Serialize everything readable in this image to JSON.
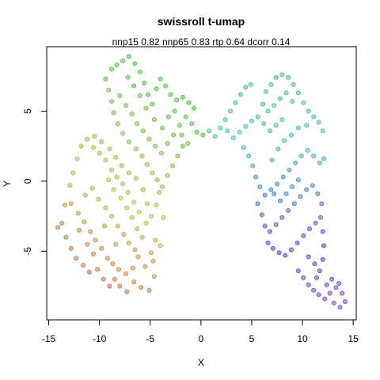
{
  "chart_data": {
    "type": "scatter",
    "title": "swissroll t-umap",
    "subtitle": "nnp15 0.82 nnp65 0.83 rtp 0.64 dcorr 0.14",
    "xlabel": "X",
    "ylabel": "Y",
    "xlim": [
      -15.2,
      15.3
    ],
    "ylim": [
      -9.9,
      9.6
    ],
    "x_ticks": [
      -15,
      -10,
      -5,
      0,
      5,
      10,
      15
    ],
    "y_ticks": [
      -5,
      0,
      5
    ],
    "grid": false,
    "legend": "none",
    "color_encoding": "rainbow hue along manifold (red to magenta)",
    "point_colors": [
      "#c0504a",
      "#c8a049",
      "#9ec544",
      "#4cc050",
      "#3cc0bf",
      "#3f7fd0",
      "#6648c8",
      "#c040c0"
    ],
    "points": [
      [
        -14.1,
        -3.3
      ],
      [
        -13.7,
        -3.0
      ],
      [
        -13.3,
        -4.0
      ],
      [
        -12.8,
        -4.8
      ],
      [
        -12.3,
        -5.5
      ],
      [
        -11.6,
        -6.0
      ],
      [
        -11.0,
        -6.5
      ],
      [
        -10.2,
        -6.3
      ],
      [
        -9.6,
        -7.0
      ],
      [
        -9.0,
        -7.5
      ],
      [
        -8.5,
        -7.0
      ],
      [
        -8.0,
        -7.5
      ],
      [
        -7.3,
        -7.9
      ],
      [
        -6.6,
        -7.2
      ],
      [
        -5.9,
        -7.6
      ],
      [
        -5.1,
        -7.8
      ],
      [
        -4.6,
        -6.8
      ],
      [
        -4.7,
        -5.7
      ],
      [
        -13.4,
        -1.7
      ],
      [
        -12.8,
        -1.6
      ],
      [
        -12.1,
        -2.3
      ],
      [
        -11.5,
        -2.9
      ],
      [
        -10.9,
        -3.6
      ],
      [
        -10.4,
        -4.2
      ],
      [
        -9.8,
        -4.8
      ],
      [
        -9.2,
        -5.5
      ],
      [
        -8.7,
        -5.9
      ],
      [
        -8.1,
        -6.3
      ],
      [
        -7.4,
        -6.6
      ],
      [
        -6.7,
        -6.2
      ],
      [
        -6.2,
        -5.4
      ],
      [
        -5.5,
        -6.1
      ],
      [
        -4.9,
        -5.1
      ],
      [
        -4.5,
        -4.2
      ],
      [
        -4.0,
        -4.6
      ],
      [
        -12.9,
        -0.3
      ],
      [
        -12.6,
        0.6
      ],
      [
        -12.2,
        1.6
      ],
      [
        -11.8,
        2.5
      ],
      [
        -11.2,
        3.0
      ],
      [
        -10.6,
        2.4
      ],
      [
        -10.0,
        2.0
      ],
      [
        -9.4,
        1.5
      ],
      [
        -8.8,
        0.8
      ],
      [
        -8.3,
        0.3
      ],
      [
        -7.7,
        -0.2
      ],
      [
        -7.2,
        -0.8
      ],
      [
        -6.6,
        -1.5
      ],
      [
        -6.1,
        -2.2
      ],
      [
        -5.4,
        -3.0
      ],
      [
        -4.9,
        -2.5
      ],
      [
        -4.4,
        -1.7
      ],
      [
        -4.1,
        -0.8
      ],
      [
        -3.7,
        -2.6
      ],
      [
        -11.4,
        -1.0
      ],
      [
        -10.7,
        -0.5
      ],
      [
        -10.1,
        -1.3
      ],
      [
        -9.4,
        -1.9
      ],
      [
        -8.8,
        -2.5
      ],
      [
        -8.2,
        -3.2
      ],
      [
        -7.6,
        -3.8
      ],
      [
        -7.1,
        -4.4
      ],
      [
        -6.5,
        -4.9
      ],
      [
        -12.0,
        -3.5
      ],
      [
        -11.2,
        -4.5
      ],
      [
        -10.6,
        -5.2
      ],
      [
        -9.5,
        -3.2
      ],
      [
        -8.4,
        -4.5
      ],
      [
        -9.1,
        0.1
      ],
      [
        -8.6,
        -0.6
      ],
      [
        -7.9,
        -1.2
      ],
      [
        -7.3,
        -1.9
      ],
      [
        -6.8,
        -2.6
      ],
      [
        -6.3,
        -3.4
      ],
      [
        -5.8,
        -4.0
      ],
      [
        -5.3,
        -1.6
      ],
      [
        -5.7,
        -0.6
      ],
      [
        -6.4,
        0.2
      ],
      [
        -7.1,
        0.6
      ],
      [
        -7.8,
        1.1
      ],
      [
        -8.4,
        1.7
      ],
      [
        -9.0,
        2.3
      ],
      [
        -9.8,
        2.8
      ],
      [
        -10.5,
        3.2
      ],
      [
        -8.8,
        8.0
      ],
      [
        -8.3,
        8.3
      ],
      [
        -7.7,
        8.6
      ],
      [
        -7.1,
        8.9
      ],
      [
        -6.5,
        8.4
      ],
      [
        -6.0,
        7.8
      ],
      [
        -5.6,
        7.0
      ],
      [
        -5.2,
        6.2
      ],
      [
        -4.8,
        5.5
      ],
      [
        -4.4,
        6.6
      ],
      [
        -4.0,
        7.3
      ],
      [
        -3.5,
        6.8
      ],
      [
        -3.0,
        6.2
      ],
      [
        -2.4,
        5.8
      ],
      [
        -1.8,
        6.0
      ],
      [
        -1.2,
        5.6
      ],
      [
        -0.7,
        5.2
      ],
      [
        -9.4,
        7.3
      ],
      [
        -9.1,
        6.5
      ],
      [
        -8.8,
        5.7
      ],
      [
        -8.6,
        4.9
      ],
      [
        -8.2,
        4.1
      ],
      [
        -7.7,
        3.4
      ],
      [
        -7.1,
        2.8
      ],
      [
        -6.4,
        2.3
      ],
      [
        -5.8,
        1.8
      ],
      [
        -5.3,
        1.2
      ],
      [
        -4.8,
        0.6
      ],
      [
        -4.3,
        0.1
      ],
      [
        -3.8,
        -0.4
      ],
      [
        -3.3,
        0.4
      ],
      [
        -2.8,
        1.1
      ],
      [
        -2.3,
        1.8
      ],
      [
        -1.8,
        2.5
      ],
      [
        -8.0,
        6.1
      ],
      [
        -7.4,
        5.4
      ],
      [
        -6.8,
        4.8
      ],
      [
        -6.3,
        4.1
      ],
      [
        -5.7,
        3.6
      ],
      [
        -5.1,
        3.0
      ],
      [
        -4.5,
        2.5
      ],
      [
        -3.9,
        2.0
      ],
      [
        -3.3,
        2.7
      ],
      [
        -2.7,
        3.3
      ],
      [
        -2.1,
        4.0
      ],
      [
        -1.5,
        4.6
      ],
      [
        -0.9,
        4.1
      ],
      [
        -0.4,
        3.5
      ],
      [
        -7.2,
        7.4
      ],
      [
        -6.6,
        6.8
      ],
      [
        -6.0,
        6.1
      ],
      [
        -5.4,
        5.2
      ],
      [
        -4.6,
        4.4
      ],
      [
        -3.8,
        3.8
      ],
      [
        -3.2,
        4.6
      ],
      [
        -2.6,
        5.0
      ],
      [
        -1.9,
        3.3
      ],
      [
        -1.3,
        2.7
      ],
      [
        0.2,
        3.3
      ],
      [
        0.8,
        3.6
      ],
      [
        1.4,
        3.2
      ],
      [
        1.9,
        3.8
      ],
      [
        2.4,
        4.4
      ],
      [
        2.9,
        5.0
      ],
      [
        3.4,
        5.6
      ],
      [
        3.9,
        6.2
      ],
      [
        4.4,
        6.7
      ],
      [
        4.9,
        6.9
      ],
      [
        2.6,
        3.6
      ],
      [
        3.2,
        3.1
      ],
      [
        3.8,
        3.5
      ],
      [
        4.4,
        3.9
      ],
      [
        5.0,
        4.3
      ],
      [
        5.6,
        4.6
      ],
      [
        6.2,
        4.1
      ],
      [
        6.8,
        3.6
      ],
      [
        7.4,
        4.0
      ],
      [
        8.0,
        4.4
      ],
      [
        6.4,
        6.4
      ],
      [
        6.9,
        6.9
      ],
      [
        7.4,
        7.4
      ],
      [
        8.0,
        7.6
      ],
      [
        8.6,
        7.4
      ],
      [
        9.1,
        6.9
      ],
      [
        9.6,
        6.3
      ],
      [
        10.1,
        5.6
      ],
      [
        10.6,
        5.0
      ],
      [
        11.1,
        4.6
      ],
      [
        11.6,
        4.2
      ],
      [
        12.0,
        3.6
      ],
      [
        6.1,
        5.5
      ],
      [
        6.6,
        5.0
      ],
      [
        7.2,
        5.4
      ],
      [
        7.8,
        5.9
      ],
      [
        8.4,
        6.3
      ],
      [
        9.0,
        5.7
      ],
      [
        4.2,
        2.4
      ],
      [
        4.7,
        1.8
      ],
      [
        5.1,
        1.1
      ],
      [
        5.4,
        0.3
      ],
      [
        5.8,
        -0.4
      ],
      [
        6.3,
        -1.0
      ],
      [
        6.9,
        -0.6
      ],
      [
        7.5,
        -0.2
      ],
      [
        8.1,
        0.3
      ],
      [
        8.7,
        0.8
      ],
      [
        9.3,
        1.3
      ],
      [
        9.9,
        1.8
      ],
      [
        10.5,
        2.2
      ],
      [
        11.1,
        1.8
      ],
      [
        11.7,
        1.3
      ],
      [
        12.1,
        1.6
      ],
      [
        7.0,
        1.5
      ],
      [
        7.6,
        2.3
      ],
      [
        8.2,
        2.9
      ],
      [
        8.9,
        3.3
      ],
      [
        9.6,
        3.8
      ],
      [
        10.4,
        4.0
      ],
      [
        5.6,
        -1.6
      ],
      [
        6.0,
        -2.4
      ],
      [
        6.3,
        -3.2
      ],
      [
        6.8,
        -3.6
      ],
      [
        7.4,
        -3.1
      ],
      [
        8.0,
        -2.6
      ],
      [
        8.6,
        -2.1
      ],
      [
        9.2,
        -1.6
      ],
      [
        9.8,
        -1.1
      ],
      [
        10.4,
        -0.6
      ],
      [
        11.0,
        -0.3
      ],
      [
        11.5,
        -0.9
      ],
      [
        11.9,
        -1.6
      ],
      [
        7.2,
        -0.9
      ],
      [
        7.8,
        -1.4
      ],
      [
        8.4,
        -0.9
      ],
      [
        9.0,
        -0.4
      ],
      [
        9.6,
        0.1
      ],
      [
        6.6,
        -4.4
      ],
      [
        7.1,
        -4.8
      ],
      [
        7.7,
        -5.1
      ],
      [
        8.3,
        -5.3
      ],
      [
        8.9,
        -4.9
      ],
      [
        9.5,
        -4.4
      ],
      [
        10.1,
        -3.9
      ],
      [
        10.7,
        -3.4
      ],
      [
        11.3,
        -3.0
      ],
      [
        11.8,
        -2.6
      ],
      [
        12.0,
        -3.6
      ],
      [
        12.1,
        -4.6
      ],
      [
        12.0,
        -5.6
      ],
      [
        11.7,
        -6.4
      ],
      [
        9.6,
        -6.4
      ],
      [
        10.1,
        -6.9
      ],
      [
        10.6,
        -7.4
      ],
      [
        11.1,
        -7.8
      ],
      [
        11.6,
        -8.1
      ],
      [
        12.2,
        -8.4
      ],
      [
        12.7,
        -8.0
      ],
      [
        13.3,
        -7.6
      ],
      [
        13.9,
        -8.0
      ],
      [
        14.2,
        -8.6
      ],
      [
        13.7,
        -9.0
      ],
      [
        13.1,
        -8.7
      ],
      [
        10.6,
        -5.4
      ],
      [
        11.2,
        -5.9
      ],
      [
        11.4,
        -6.9
      ],
      [
        12.4,
        -7.4
      ],
      [
        12.9,
        -7.0
      ],
      [
        13.6,
        -7.3
      ]
    ]
  }
}
